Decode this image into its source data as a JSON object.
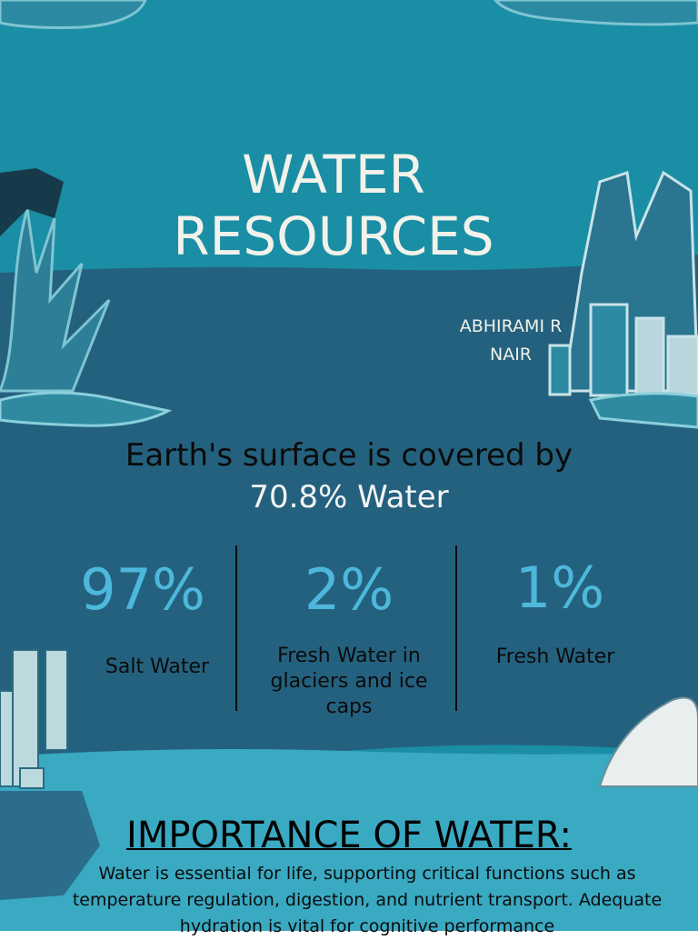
{
  "title": "WATER RESOURCES",
  "author": "ABHIRAMI R NAIR",
  "headline": {
    "lead": "Earth's surface is covered by",
    "highlight": "70.8% Water"
  },
  "stats": [
    {
      "value": "97%",
      "label": "Salt Water"
    },
    {
      "value": "2%",
      "label": "Fresh Water in glaciers and ice caps"
    },
    {
      "value": "1%",
      "label": "Fresh Water"
    }
  ],
  "importance": {
    "heading": "IMPORTANCE OF WATER:",
    "text": "Water is essential for life, supporting critical functions such as temperature regulation, digestion, and nutrient transport. Adequate hydration is vital for cognitive performance"
  }
}
